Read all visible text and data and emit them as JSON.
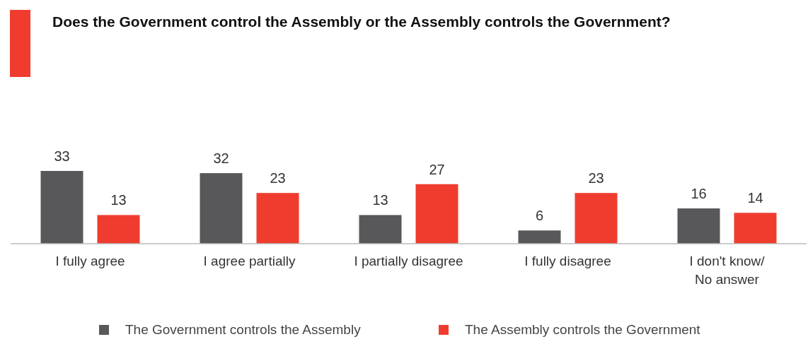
{
  "chart_data": {
    "type": "bar",
    "title": "Does the Government control the Assembly or the Assembly controls the Government?",
    "categories": [
      "I fully agree",
      "I agree partially",
      "I partially disagree",
      "I fully disagree",
      "I don't know/\nNo answer"
    ],
    "series": [
      {
        "name": "The Government controls the Assembly",
        "color": "#58585a",
        "values": [
          33,
          32,
          13,
          6,
          16
        ]
      },
      {
        "name": "The Assembly controls the Government",
        "color": "#f03c2e",
        "values": [
          13,
          23,
          27,
          23,
          14
        ]
      }
    ],
    "data_labels": true,
    "legend": "bottom",
    "grid": false
  }
}
